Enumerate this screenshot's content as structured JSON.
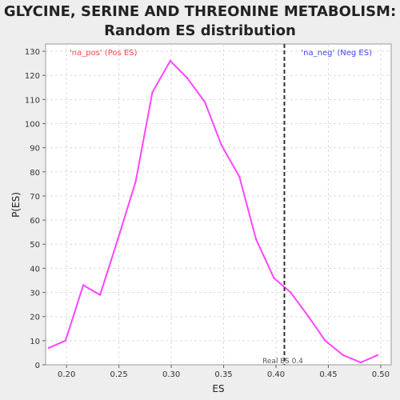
{
  "chart_data": {
    "type": "line",
    "title_lines": [
      "GLYCINE, SERINE AND THREONINE METABOLISM:",
      "Random ES distribution"
    ],
    "xlabel": "ES",
    "ylabel": "P(ES)",
    "xlim": [
      0.18,
      0.51
    ],
    "ylim": [
      0,
      133
    ],
    "x_ticks": [
      0.2,
      0.25,
      0.3,
      0.35,
      0.4,
      0.45,
      0.5
    ],
    "x_tick_labels": [
      "0.20",
      "0.25",
      "0.30",
      "0.35",
      "0.40",
      "0.45",
      "0.50"
    ],
    "y_ticks": [
      0,
      10,
      20,
      30,
      40,
      50,
      60,
      70,
      80,
      90,
      100,
      110,
      120,
      130
    ],
    "grid": true,
    "series": [
      {
        "color": "#ff44ff",
        "x": [
          0.183,
          0.199,
          0.216,
          0.232,
          0.249,
          0.266,
          0.282,
          0.299,
          0.315,
          0.332,
          0.348,
          0.365,
          0.381,
          0.398,
          0.414,
          0.431,
          0.447,
          0.464,
          0.481,
          0.497
        ],
        "y": [
          7,
          10,
          33,
          29,
          52,
          76,
          113,
          126,
          119,
          109,
          91,
          78,
          52,
          36,
          30,
          20,
          10,
          4,
          1,
          4
        ]
      }
    ],
    "real_es": 0.408,
    "real_es_label": "Real ES 0.4",
    "annotations": {
      "pos_label": "'na_pos' (Pos ES)",
      "pos_color": "#ff4444",
      "neg_label": "'na_neg' (Neg ES)",
      "neg_color": "#4444ff"
    }
  }
}
